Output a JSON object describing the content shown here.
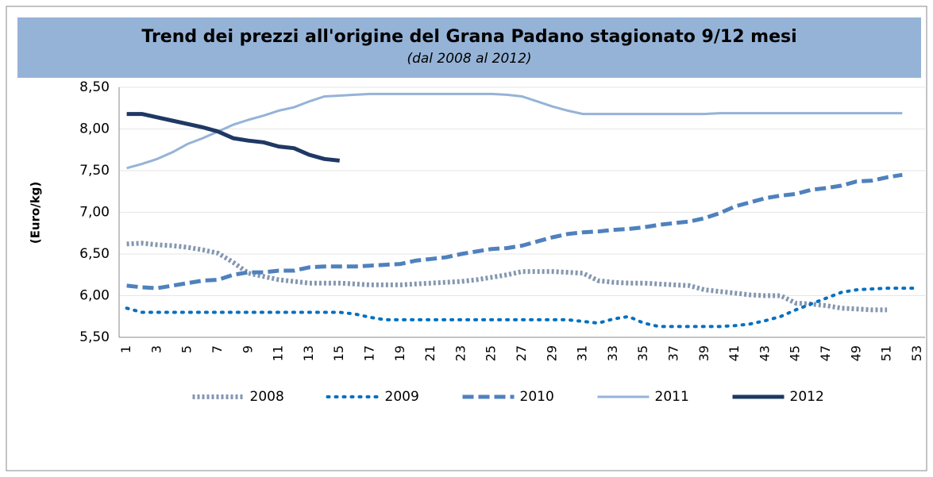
{
  "chart_data": {
    "type": "line",
    "title": "Trend dei prezzi all'origine del Grana Padano stagionato 9/12 mesi",
    "subtitle": "(dal 2008 al 2012)",
    "y_label": "(Euro/kg)",
    "categories": [
      "1",
      null,
      "3",
      null,
      "5",
      null,
      "7",
      null,
      "9",
      null,
      "11",
      null,
      "13",
      null,
      "15",
      null,
      "17",
      null,
      "19",
      null,
      "21",
      null,
      "23",
      null,
      "25",
      null,
      "27",
      null,
      "29",
      null,
      "31",
      null,
      "33",
      null,
      "35",
      null,
      "37",
      null,
      "39",
      null,
      "41",
      null,
      "43",
      null,
      "45",
      null,
      "47",
      null,
      "49",
      null,
      "51",
      null,
      "53"
    ],
    "ylim": [
      5.5,
      8.5
    ],
    "yticks": [
      {
        "value": 5.5,
        "label": "5,50"
      },
      {
        "value": 6,
        "label": "6,00"
      },
      {
        "value": 6.5,
        "label": "6,50"
      },
      {
        "value": 7,
        "label": "7,00"
      },
      {
        "value": 7.5,
        "label": "7,50"
      },
      {
        "value": 8,
        "label": "8,00"
      },
      {
        "value": 8.5,
        "label": "8,50"
      }
    ],
    "grid": true,
    "legend": "bottom",
    "series": [
      {
        "name": "2008",
        "color": "#8497b0",
        "style": "dotted-heavy",
        "width": 6,
        "values": [
          6.62,
          6.63,
          6.61,
          6.6,
          6.58,
          6.55,
          6.51,
          6.4,
          6.27,
          6.23,
          6.19,
          6.17,
          6.15,
          6.15,
          6.15,
          6.14,
          6.13,
          6.13,
          6.13,
          6.14,
          6.15,
          6.16,
          6.17,
          6.19,
          6.22,
          6.25,
          6.29,
          6.29,
          6.29,
          6.28,
          6.27,
          6.18,
          6.16,
          6.15,
          6.15,
          6.14,
          6.13,
          6.12,
          6.07,
          6.05,
          6.03,
          6.01,
          6.0,
          6.0,
          5.91,
          5.9,
          5.88,
          5.85,
          5.84,
          5.83,
          5.83,
          null,
          null
        ]
      },
      {
        "name": "2009",
        "color": "#0070c0",
        "style": "dotted",
        "width": 4,
        "values": [
          5.85,
          5.8,
          5.8,
          5.8,
          5.8,
          5.8,
          5.8,
          5.8,
          5.8,
          5.8,
          5.8,
          5.8,
          5.8,
          5.8,
          5.8,
          5.78,
          5.74,
          5.71,
          5.71,
          5.71,
          5.71,
          5.71,
          5.71,
          5.71,
          5.71,
          5.71,
          5.71,
          5.71,
          5.71,
          5.71,
          5.69,
          5.67,
          5.72,
          5.75,
          5.67,
          5.63,
          5.63,
          5.63,
          5.63,
          5.63,
          5.64,
          5.66,
          5.7,
          5.75,
          5.83,
          5.9,
          5.97,
          6.04,
          6.07,
          6.08,
          6.09,
          6.09,
          6.09
        ]
      },
      {
        "name": "2010",
        "color": "#4f81bd",
        "style": "dashed",
        "width": 5,
        "values": [
          6.12,
          6.1,
          6.09,
          6.12,
          6.15,
          6.18,
          6.19,
          6.25,
          6.28,
          6.28,
          6.3,
          6.3,
          6.34,
          6.35,
          6.35,
          6.35,
          6.36,
          6.37,
          6.38,
          6.42,
          6.44,
          6.46,
          6.5,
          6.53,
          6.56,
          6.57,
          6.6,
          6.65,
          6.7,
          6.74,
          6.76,
          6.77,
          6.79,
          6.8,
          6.82,
          6.85,
          6.87,
          6.89,
          6.93,
          6.99,
          7.07,
          7.12,
          7.17,
          7.2,
          7.22,
          7.27,
          7.29,
          7.32,
          7.37,
          7.38,
          7.42,
          7.45,
          null
        ]
      },
      {
        "name": "2011",
        "color": "#95b3d7",
        "style": "solid",
        "width": 3,
        "values": [
          7.53,
          7.58,
          7.64,
          7.72,
          7.82,
          7.89,
          7.97,
          8.05,
          8.11,
          8.16,
          8.22,
          8.26,
          8.33,
          8.39,
          8.4,
          8.41,
          8.42,
          8.42,
          8.42,
          8.42,
          8.42,
          8.42,
          8.42,
          8.42,
          8.42,
          8.41,
          8.39,
          8.33,
          8.27,
          8.22,
          8.18,
          8.18,
          8.18,
          8.18,
          8.18,
          8.18,
          8.18,
          8.18,
          8.18,
          8.19,
          8.19,
          8.19,
          8.19,
          8.19,
          8.19,
          8.19,
          8.19,
          8.19,
          8.19,
          8.19,
          8.19,
          8.19,
          null
        ]
      },
      {
        "name": "2012",
        "color": "#1f3864",
        "style": "solid",
        "width": 5,
        "values": [
          8.18,
          8.18,
          8.14,
          8.1,
          8.06,
          8.02,
          7.97,
          7.89,
          7.86,
          7.84,
          7.79,
          7.77,
          7.69,
          7.64,
          7.62,
          null,
          null,
          null,
          null,
          null,
          null,
          null,
          null,
          null,
          null,
          null,
          null,
          null,
          null,
          null,
          null,
          null,
          null,
          null,
          null,
          null,
          null,
          null,
          null,
          null,
          null,
          null,
          null,
          null,
          null,
          null,
          null,
          null,
          null,
          null,
          null,
          null,
          null
        ]
      }
    ]
  }
}
